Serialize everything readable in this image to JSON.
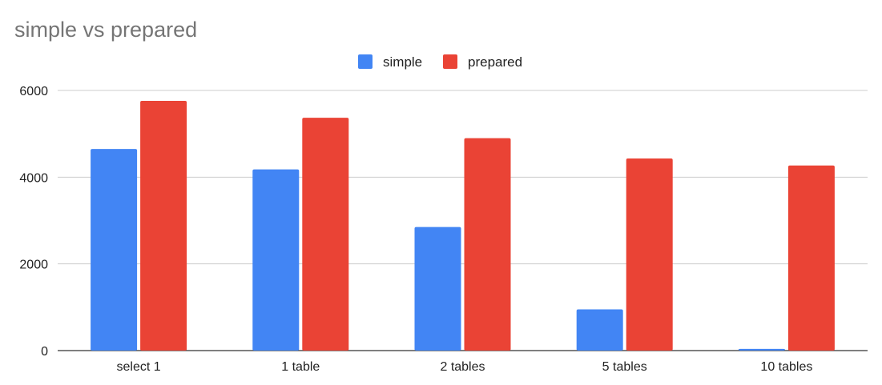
{
  "chart_data": {
    "type": "bar",
    "title": "simple vs prepared",
    "categories": [
      "select 1",
      "1 table",
      "2 tables",
      "5 tables",
      "10 tables"
    ],
    "series": [
      {
        "name": "simple",
        "color": "#4285f4",
        "values": [
          4650,
          4180,
          2850,
          950,
          40
        ]
      },
      {
        "name": "prepared",
        "color": "#ea4335",
        "values": [
          5760,
          5370,
          4900,
          4430,
          4270
        ]
      }
    ],
    "ylim": [
      0,
      6000
    ],
    "yticks": [
      0,
      2000,
      4000,
      6000
    ],
    "ytick_labels": [
      "0",
      "2000",
      "4000",
      "6000"
    ],
    "grid": true,
    "legend_position": "top-center",
    "xlabel": "",
    "ylabel": ""
  }
}
